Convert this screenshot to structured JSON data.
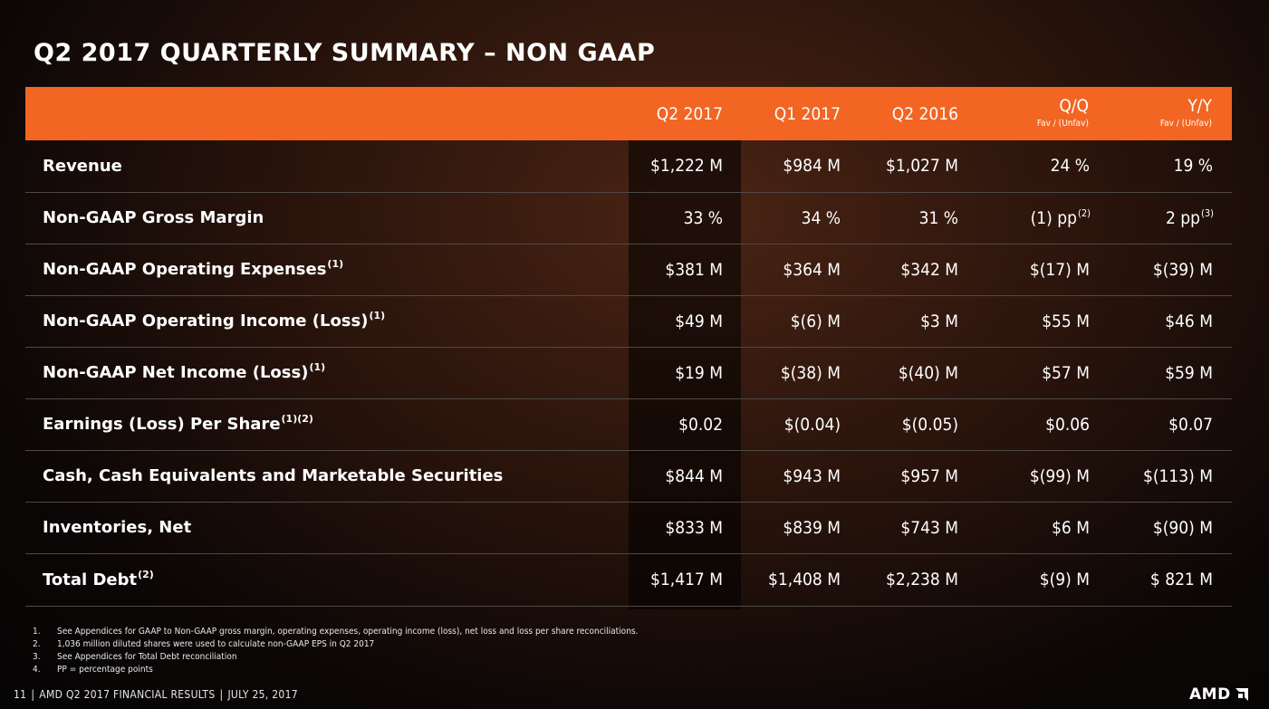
{
  "title": "Q2 2017 QUARTERLY SUMMARY – NON GAAP",
  "table": {
    "headers": {
      "q2_2017": "Q2 2017",
      "q1_2017": "Q1 2017",
      "q2_2016": "Q2 2016",
      "qq": "Q/Q",
      "qq_sub": "Fav / (Unfav)",
      "yy": "Y/Y",
      "yy_sub": "Fav / (Unfav)"
    },
    "rows": [
      {
        "metric": "Revenue",
        "sup": "",
        "q2_2017": "$1,222 M",
        "q1_2017": "$984 M",
        "q2_2016": "$1,027 M",
        "qq": "24 %",
        "qq_sup": "",
        "yy": "19 %",
        "yy_sup": ""
      },
      {
        "metric": "Non-GAAP Gross Margin",
        "sup": "",
        "q2_2017": "33 %",
        "q1_2017": "34 %",
        "q2_2016": "31 %",
        "qq": "(1) pp",
        "qq_sup": "(2)",
        "yy": "2 pp",
        "yy_sup": "(3)"
      },
      {
        "metric": "Non-GAAP Operating Expenses",
        "sup": "(1)",
        "q2_2017": "$381 M",
        "q1_2017": "$364 M",
        "q2_2016": "$342 M",
        "qq": "$(17) M",
        "qq_sup": "",
        "yy": "$(39) M",
        "yy_sup": ""
      },
      {
        "metric": "Non-GAAP Operating Income (Loss)",
        "sup": "(1)",
        "q2_2017": "$49 M",
        "q1_2017": "$(6) M",
        "q2_2016": "$3 M",
        "qq": "$55 M",
        "qq_sup": "",
        "yy": "$46 M",
        "yy_sup": ""
      },
      {
        "metric": "Non-GAAP Net Income (Loss)",
        "sup": "(1)",
        "q2_2017": "$19 M",
        "q1_2017": "$(38) M",
        "q2_2016": "$(40) M",
        "qq": "$57 M",
        "qq_sup": "",
        "yy": "$59 M",
        "yy_sup": ""
      },
      {
        "metric": "Earnings (Loss) Per Share",
        "sup": "(1)(2)",
        "q2_2017": "$0.02",
        "q1_2017": "$(0.04)",
        "q2_2016": "$(0.05)",
        "qq": "$0.06",
        "qq_sup": "",
        "yy": "$0.07",
        "yy_sup": ""
      },
      {
        "metric": "Cash, Cash Equivalents and Marketable Securities",
        "sup": "",
        "q2_2017": "$844 M",
        "q1_2017": "$943 M",
        "q2_2016": "$957 M",
        "qq": "$(99) M",
        "qq_sup": "",
        "yy": "$(113) M",
        "yy_sup": ""
      },
      {
        "metric": "Inventories, Net",
        "sup": "",
        "q2_2017": "$833 M",
        "q1_2017": "$839 M",
        "q2_2016": "$743 M",
        "qq": "$6 M",
        "qq_sup": "",
        "yy": "$(90) M",
        "yy_sup": ""
      },
      {
        "metric": "Total Debt",
        "sup": "(2)",
        "q2_2017": "$1,417 M",
        "q1_2017": "$1,408 M",
        "q2_2016": "$2,238 M",
        "qq": "$(9) M",
        "qq_sup": "",
        "yy": "$ 821  M",
        "yy_sup": ""
      }
    ]
  },
  "footnotes": [
    {
      "num": "1.",
      "text": "See Appendices for GAAP to Non-GAAP gross margin, operating expenses, operating income (loss), net loss and loss per share reconciliations."
    },
    {
      "num": "2.",
      "text": "1,036 million diluted shares were used to calculate non-GAAP EPS in Q2 2017"
    },
    {
      "num": "3.",
      "text": "See Appendices for Total Debt reconciliation"
    },
    {
      "num": "4.",
      "text": "PP = percentage points"
    }
  ],
  "footer": {
    "page_number": "11",
    "presentation": "AMD Q2 2017 FINANCIAL RESULTS",
    "date": "JULY 25, 2017"
  },
  "logo": {
    "text": "AMD",
    "icon": "amd-arrow-icon"
  }
}
